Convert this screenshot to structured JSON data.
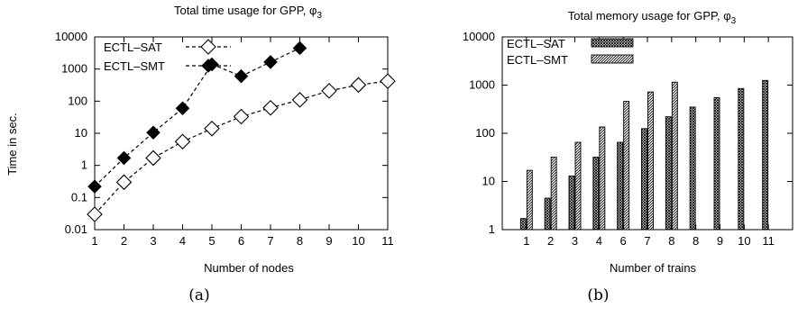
{
  "chart_data": [
    {
      "type": "line",
      "title": "Total time usage for GPP, φ",
      "title_subscript": "3",
      "xlabel": "Number of nodes",
      "ylabel": "Time in sec.",
      "yscale": "log",
      "ylim": [
        0.01,
        10000
      ],
      "y_tick_labels": [
        "0.01",
        "0.1",
        "1",
        "10",
        "100",
        "1000",
        "10000"
      ],
      "x_tick_labels": [
        "1",
        "2",
        "3",
        "4",
        "5",
        "6",
        "7",
        "8",
        "9",
        "10",
        "11"
      ],
      "grid": false,
      "legend_position": "top-left",
      "caption": "(a)",
      "series": [
        {
          "name": "ECTL–SAT",
          "marker": "open-diamond",
          "x": [
            1,
            2,
            3,
            4,
            5,
            6,
            7,
            8,
            9,
            10,
            11
          ],
          "y": [
            0.03,
            0.3,
            1.7,
            5.5,
            14,
            33,
            62,
            110,
            210,
            320,
            420
          ]
        },
        {
          "name": "ECTL–SMT",
          "marker": "filled-diamond",
          "x": [
            1,
            2,
            3,
            4,
            5,
            6,
            7,
            8
          ],
          "y": [
            0.22,
            1.7,
            10.5,
            60,
            1400,
            600,
            1650,
            4500
          ]
        }
      ]
    },
    {
      "type": "bar",
      "title": "Total memory usage for GPP, φ",
      "title_subscript": "3",
      "xlabel": "Number of trains",
      "ylabel": "",
      "yscale": "log",
      "ylim": [
        1,
        10000
      ],
      "y_tick_labels": [
        "1",
        "10",
        "100",
        "1000",
        "10000"
      ],
      "categories": [
        "1",
        "2",
        "3",
        "4",
        "6",
        "7",
        "8",
        "8",
        "9",
        "10",
        "11"
      ],
      "grid": false,
      "legend_position": "top-left",
      "caption": "(b)",
      "series": [
        {
          "name": "ECTL–SAT",
          "pattern": "crosshatch",
          "values": [
            1.7,
            4.5,
            13,
            32,
            65,
            125,
            220,
            350,
            550,
            850,
            1250
          ]
        },
        {
          "name": "ECTL–SMT",
          "pattern": "diagonal",
          "values": [
            17,
            32,
            65,
            135,
            460,
            720,
            1150,
            null,
            null,
            null,
            null
          ]
        }
      ]
    }
  ]
}
